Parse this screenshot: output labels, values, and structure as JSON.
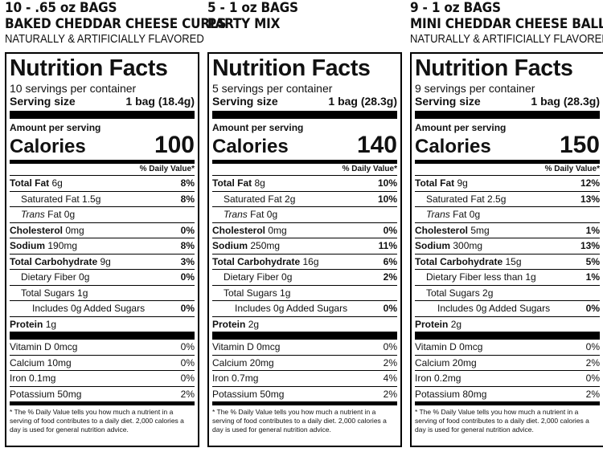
{
  "products": [
    {
      "header": {
        "title": "10 - .65 oz BAGS",
        "subtitle": "BAKED CHEDDAR CHEESE CURLS",
        "note": "NATURALLY & ARTIFICIALLY FLAVORED"
      },
      "label": {
        "title": "Nutrition Facts",
        "servings": "10 servings per container",
        "serving_size_label": "Serving size",
        "serving_size_value": "1 bag (18.4g)",
        "amount_label": "Amount per serving",
        "calories_label": "Calories",
        "calories_value": "100",
        "dv_header": "% Daily Value*",
        "total_fat_label": "Total Fat",
        "total_fat_amt": "6g",
        "total_fat_dv": "8%",
        "sat_fat_label": "Saturated Fat 1.5g",
        "sat_fat_dv": "8%",
        "trans_fat_label": "Trans",
        "trans_fat_rest": " Fat 0g",
        "cholesterol_label": "Cholesterol",
        "cholesterol_amt": "0mg",
        "cholesterol_dv": "0%",
        "sodium_label": "Sodium",
        "sodium_amt": "190mg",
        "sodium_dv": "8%",
        "carb_label": "Total Carbohydrate",
        "carb_amt": "9g",
        "carb_dv": "3%",
        "fiber_label": "Dietary Fiber 0g",
        "fiber_dv": "0%",
        "sugars_label": "Total Sugars 1g",
        "added_sugars_label": "Includes 0g Added Sugars",
        "added_sugars_dv": "0%",
        "protein_label": "Protein",
        "protein_amt": "1g",
        "vit_d_label": "Vitamin D 0mcg",
        "vit_d_dv": "0%",
        "calcium_label": "Calcium 10mg",
        "calcium_dv": "0%",
        "iron_label": "Iron 0.1mg",
        "iron_dv": "0%",
        "potassium_label": "Potassium 50mg",
        "potassium_dv": "2%",
        "footnote": "* The % Daily Value tells you how much a nutrient in a serving of food contributes to a daily diet. 2,000 calories a day is used for general nutrition advice."
      }
    },
    {
      "header": {
        "title": "5 - 1 oz BAGS",
        "subtitle": "PARTY MIX",
        "note": ""
      },
      "label": {
        "title": "Nutrition Facts",
        "servings": "5 servings per container",
        "serving_size_label": "Serving size",
        "serving_size_value": "1 bag (28.3g)",
        "amount_label": "Amount per serving",
        "calories_label": "Calories",
        "calories_value": "140",
        "dv_header": "% Daily Value*",
        "total_fat_label": "Total Fat",
        "total_fat_amt": "8g",
        "total_fat_dv": "10%",
        "sat_fat_label": "Saturated Fat 2g",
        "sat_fat_dv": "10%",
        "trans_fat_label": "Trans",
        "trans_fat_rest": " Fat 0g",
        "cholesterol_label": "Cholesterol",
        "cholesterol_amt": "0mg",
        "cholesterol_dv": "0%",
        "sodium_label": "Sodium",
        "sodium_amt": "250mg",
        "sodium_dv": "11%",
        "carb_label": "Total Carbohydrate",
        "carb_amt": "16g",
        "carb_dv": "6%",
        "fiber_label": "Dietary Fiber 0g",
        "fiber_dv": "2%",
        "sugars_label": "Total Sugars 1g",
        "added_sugars_label": "Includes 0g Added Sugars",
        "added_sugars_dv": "0%",
        "protein_label": "Protein",
        "protein_amt": "2g",
        "vit_d_label": "Vitamin D 0mcg",
        "vit_d_dv": "0%",
        "calcium_label": "Calcium 20mg",
        "calcium_dv": "2%",
        "iron_label": "Iron 0.7mg",
        "iron_dv": "4%",
        "potassium_label": "Potassium 50mg",
        "potassium_dv": "2%",
        "footnote": "* The % Daily Value tells you how much a nutrient in a serving of food contributes to a daily diet. 2,000 calories a day is used for general nutrition advice."
      }
    },
    {
      "header": {
        "title": "9 - 1 oz BAGS",
        "subtitle": "MINI CHEDDAR CHEESE BALLS",
        "note": "NATURALLY & ARTIFICIALLY FLAVORED"
      },
      "label": {
        "title": "Nutrition Facts",
        "servings": "9 servings per container",
        "serving_size_label": "Serving size",
        "serving_size_value": "1 bag (28.3g)",
        "amount_label": "Amount per serving",
        "calories_label": "Calories",
        "calories_value": "150",
        "dv_header": "% Daily Value*",
        "total_fat_label": "Total Fat",
        "total_fat_amt": "9g",
        "total_fat_dv": "12%",
        "sat_fat_label": "Saturated Fat 2.5g",
        "sat_fat_dv": "13%",
        "trans_fat_label": "Trans",
        "trans_fat_rest": " Fat 0g",
        "cholesterol_label": "Cholesterol",
        "cholesterol_amt": "5mg",
        "cholesterol_dv": "1%",
        "sodium_label": "Sodium",
        "sodium_amt": "300mg",
        "sodium_dv": "13%",
        "carb_label": "Total Carbohydrate",
        "carb_amt": "15g",
        "carb_dv": "5%",
        "fiber_label": "Dietary Fiber less than 1g",
        "fiber_dv": "1%",
        "sugars_label": "Total Sugars 2g",
        "added_sugars_label": "Includes 0g Added Sugars",
        "added_sugars_dv": "0%",
        "protein_label": "Protein",
        "protein_amt": "2g",
        "vit_d_label": "Vitamin D 0mcg",
        "vit_d_dv": "0%",
        "calcium_label": "Calcium 20mg",
        "calcium_dv": "2%",
        "iron_label": "Iron 0.2mg",
        "iron_dv": "0%",
        "potassium_label": "Potassium 80mg",
        "potassium_dv": "2%",
        "footnote": "* The % Daily Value tells you how much a nutrient in a serving of food contributes to a daily diet. 2,000 calories a day is used for general nutrition advice."
      }
    }
  ]
}
